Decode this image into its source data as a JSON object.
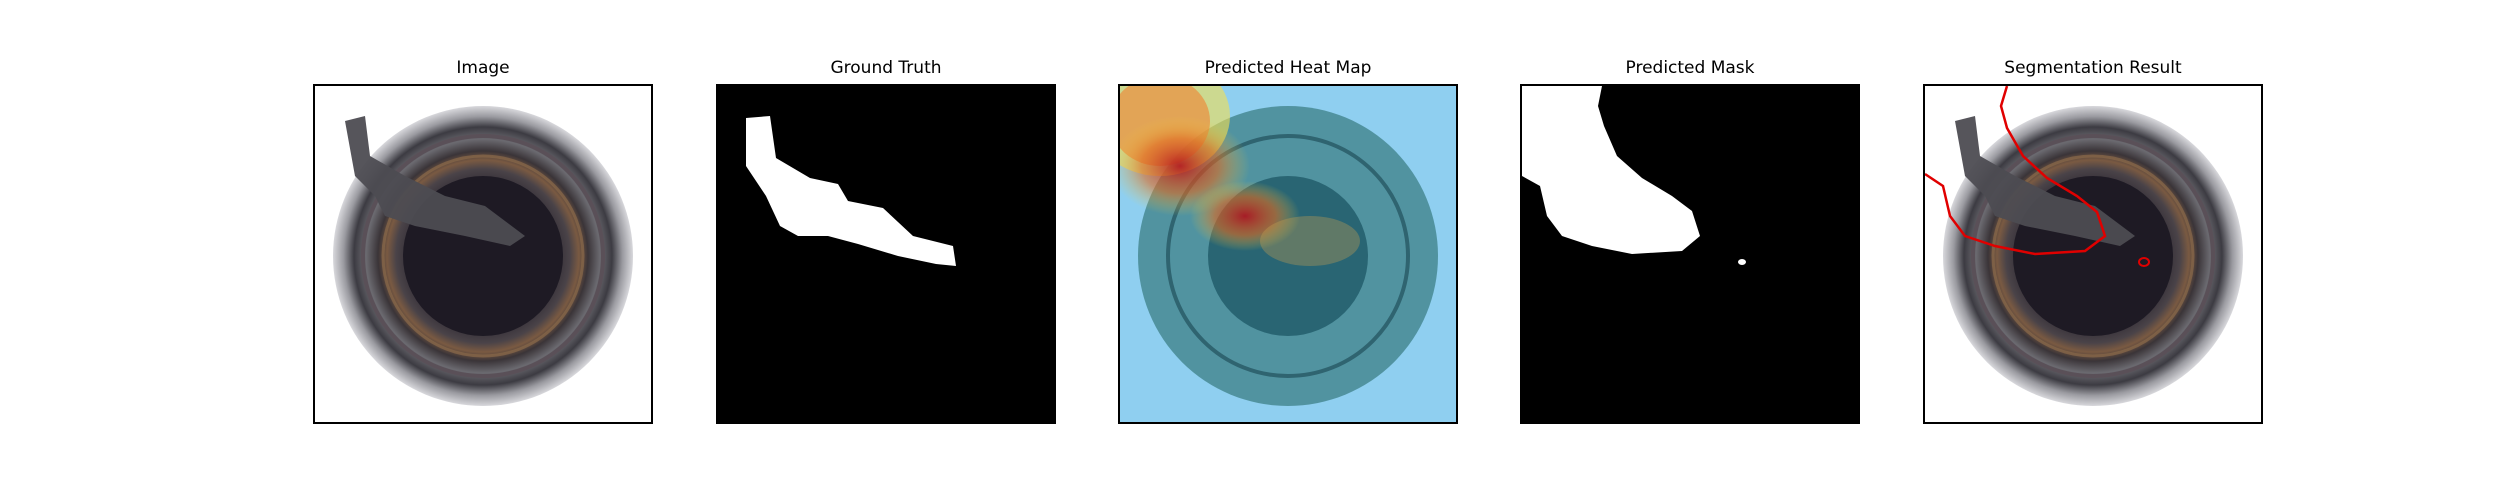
{
  "figure": {
    "panels": [
      {
        "title": "Image",
        "content": "bottle-bottom-photo"
      },
      {
        "title": "Ground Truth",
        "content": "binary-mask"
      },
      {
        "title": "Predicted Heat Map",
        "content": "heatmap-overlay"
      },
      {
        "title": "Predicted Mask",
        "content": "binary-mask"
      },
      {
        "title": "Segmentation Result",
        "content": "contour-overlay"
      }
    ]
  },
  "colors": {
    "background": "#ffffff",
    "mask_fg": "#ffffff",
    "mask_bg": "#000000",
    "contour": "#e00000",
    "heat_hot": "#c0281e",
    "heat_cold": "#8fd0f0"
  }
}
